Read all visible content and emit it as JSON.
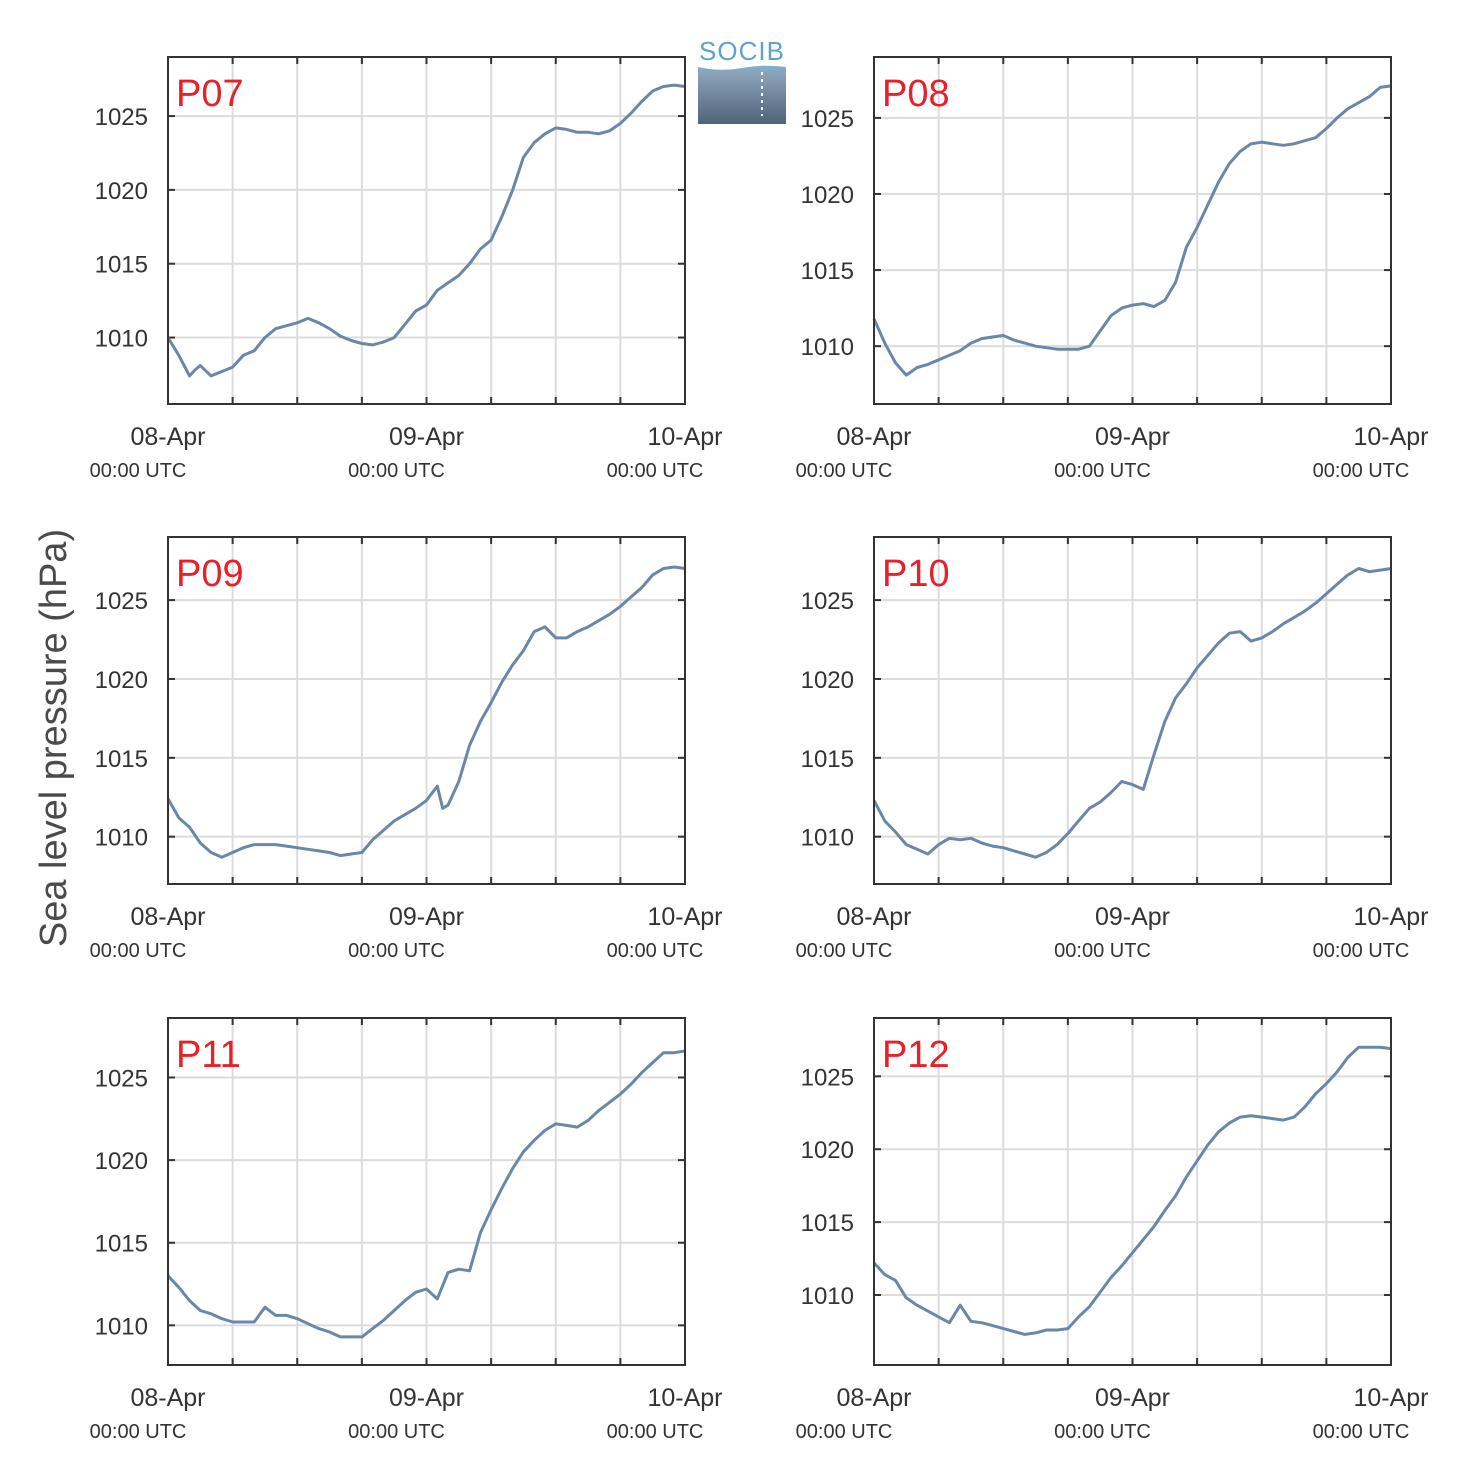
{
  "figure": {
    "ylabel": "Sea level pressure (hPa)",
    "logo_text": "SOCIB",
    "colors": {
      "series": "#6b87a8",
      "panel_label": "#e8202a",
      "grid": "#dcdcdc",
      "axis": "#333333",
      "text": "#333333",
      "logo_top": "#7fb0cf",
      "logo_bottom": "#4f6378"
    }
  },
  "chart_data": [
    {
      "type": "line",
      "panel_label": "P07",
      "x_ticks": [
        {
          "date": "08-Apr",
          "time": "00:00 UTC"
        },
        {
          "date": "09-Apr",
          "time": "00:00 UTC"
        },
        {
          "date": "10-Apr",
          "time": "00:00 UTC"
        }
      ],
      "xlim_hours": [
        0,
        48
      ],
      "ylim": [
        1005.5,
        1029
      ],
      "yticks": [
        1010,
        1015,
        1020,
        1025
      ],
      "grid": true,
      "x_hours": [
        0,
        1,
        2,
        2.5,
        3,
        4,
        5,
        6,
        7,
        8,
        9,
        10,
        11,
        12,
        13,
        14,
        15,
        16,
        17,
        18,
        19,
        20,
        21,
        22,
        23,
        24,
        25,
        26,
        27,
        28,
        29,
        30,
        31,
        32,
        33,
        34,
        35,
        36,
        37,
        38,
        39,
        40,
        41,
        42,
        43,
        44,
        45,
        46,
        47,
        48
      ],
      "values": [
        1010.0,
        1008.8,
        1007.4,
        1007.8,
        1008.1,
        1007.4,
        1007.7,
        1008.0,
        1008.8,
        1009.1,
        1010.0,
        1010.6,
        1010.8,
        1011.0,
        1011.3,
        1011.0,
        1010.6,
        1010.1,
        1009.8,
        1009.6,
        1009.5,
        1009.7,
        1010.0,
        1010.9,
        1011.8,
        1012.2,
        1013.2,
        1013.7,
        1014.2,
        1015.0,
        1016.0,
        1016.6,
        1018.2,
        1020.0,
        1022.2,
        1023.2,
        1023.8,
        1024.2,
        1024.1,
        1023.9,
        1023.9,
        1023.8,
        1024.0,
        1024.5,
        1025.2,
        1026.0,
        1026.7,
        1027.0,
        1027.1,
        1027.0
      ]
    },
    {
      "type": "line",
      "panel_label": "P08",
      "x_ticks": [
        {
          "date": "08-Apr",
          "time": "00:00 UTC"
        },
        {
          "date": "09-Apr",
          "time": "00:00 UTC"
        },
        {
          "date": "10-Apr",
          "time": "00:00 UTC"
        }
      ],
      "xlim_hours": [
        0,
        48
      ],
      "ylim": [
        1006.2,
        1029
      ],
      "yticks": [
        1010,
        1015,
        1020,
        1025
      ],
      "grid": true,
      "x_hours": [
        0,
        1,
        2,
        3,
        4,
        5,
        6,
        7,
        8,
        9,
        10,
        11,
        12,
        13,
        14,
        15,
        16,
        17,
        18,
        19,
        20,
        21,
        22,
        23,
        24,
        25,
        26,
        27,
        28,
        29,
        30,
        31,
        32,
        33,
        34,
        35,
        36,
        37,
        38,
        39,
        40,
        41,
        42,
        43,
        44,
        45,
        46,
        47,
        48
      ],
      "values": [
        1011.8,
        1010.2,
        1008.9,
        1008.1,
        1008.6,
        1008.8,
        1009.1,
        1009.4,
        1009.7,
        1010.2,
        1010.5,
        1010.6,
        1010.7,
        1010.4,
        1010.2,
        1010.0,
        1009.9,
        1009.8,
        1009.8,
        1009.8,
        1010.0,
        1011.0,
        1012.0,
        1012.5,
        1012.7,
        1012.8,
        1012.6,
        1013.0,
        1014.2,
        1016.5,
        1017.8,
        1019.3,
        1020.8,
        1022.0,
        1022.8,
        1023.3,
        1023.4,
        1023.3,
        1023.2,
        1023.3,
        1023.5,
        1023.7,
        1024.3,
        1025.0,
        1025.6,
        1026.0,
        1026.4,
        1027.0,
        1027.1
      ]
    },
    {
      "type": "line",
      "panel_label": "P09",
      "x_ticks": [
        {
          "date": "08-Apr",
          "time": "00:00 UTC"
        },
        {
          "date": "09-Apr",
          "time": "00:00 UTC"
        },
        {
          "date": "10-Apr",
          "time": "00:00 UTC"
        }
      ],
      "xlim_hours": [
        0,
        48
      ],
      "ylim": [
        1007,
        1029
      ],
      "yticks": [
        1010,
        1015,
        1020,
        1025
      ],
      "grid": true,
      "x_hours": [
        0,
        1,
        2,
        3,
        4,
        5,
        6,
        7,
        8,
        9,
        10,
        11,
        12,
        13,
        14,
        15,
        16,
        17,
        18,
        19,
        20,
        21,
        22,
        23,
        24,
        25,
        25.5,
        26,
        27,
        28,
        29,
        30,
        31,
        32,
        33,
        34,
        35,
        36,
        37,
        38,
        39,
        40,
        41,
        42,
        43,
        44,
        45,
        46,
        47,
        48
      ],
      "values": [
        1012.4,
        1011.2,
        1010.6,
        1009.6,
        1009.0,
        1008.7,
        1009.0,
        1009.3,
        1009.5,
        1009.5,
        1009.5,
        1009.4,
        1009.3,
        1009.2,
        1009.1,
        1009.0,
        1008.8,
        1008.9,
        1009.0,
        1009.8,
        1010.4,
        1011.0,
        1011.4,
        1011.8,
        1012.3,
        1013.2,
        1011.8,
        1012.0,
        1013.5,
        1015.8,
        1017.3,
        1018.5,
        1019.8,
        1020.9,
        1021.8,
        1023.0,
        1023.3,
        1022.6,
        1022.6,
        1023.0,
        1023.3,
        1023.7,
        1024.1,
        1024.6,
        1025.2,
        1025.8,
        1026.6,
        1027.0,
        1027.1,
        1027.0
      ]
    },
    {
      "type": "line",
      "panel_label": "P10",
      "x_ticks": [
        {
          "date": "08-Apr",
          "time": "00:00 UTC"
        },
        {
          "date": "09-Apr",
          "time": "00:00 UTC"
        },
        {
          "date": "10-Apr",
          "time": "00:00 UTC"
        }
      ],
      "xlim_hours": [
        0,
        48
      ],
      "ylim": [
        1007,
        1029
      ],
      "yticks": [
        1010,
        1015,
        1020,
        1025
      ],
      "grid": true,
      "x_hours": [
        0,
        1,
        2,
        3,
        4,
        5,
        6,
        7,
        8,
        9,
        10,
        11,
        12,
        13,
        14,
        15,
        16,
        17,
        18,
        19,
        20,
        21,
        22,
        23,
        24,
        25,
        26,
        27,
        28,
        29,
        30,
        31,
        32,
        33,
        34,
        35,
        36,
        37,
        38,
        39,
        40,
        41,
        42,
        43,
        44,
        45,
        46,
        47,
        48
      ],
      "values": [
        1012.3,
        1011.0,
        1010.3,
        1009.5,
        1009.2,
        1008.9,
        1009.5,
        1009.9,
        1009.8,
        1009.9,
        1009.6,
        1009.4,
        1009.3,
        1009.1,
        1008.9,
        1008.7,
        1009.0,
        1009.5,
        1010.2,
        1011.0,
        1011.8,
        1012.2,
        1012.8,
        1013.5,
        1013.3,
        1013.0,
        1015.2,
        1017.3,
        1018.8,
        1019.7,
        1020.7,
        1021.5,
        1022.3,
        1022.9,
        1023.0,
        1022.4,
        1022.6,
        1023.0,
        1023.5,
        1023.9,
        1024.3,
        1024.8,
        1025.4,
        1026.0,
        1026.6,
        1027.0,
        1026.8,
        1026.9,
        1027.0
      ]
    },
    {
      "type": "line",
      "panel_label": "P11",
      "x_ticks": [
        {
          "date": "08-Apr",
          "time": "00:00 UTC"
        },
        {
          "date": "09-Apr",
          "time": "00:00 UTC"
        },
        {
          "date": "10-Apr",
          "time": "00:00 UTC"
        }
      ],
      "xlim_hours": [
        0,
        48
      ],
      "ylim": [
        1007.6,
        1028.6
      ],
      "yticks": [
        1010,
        1015,
        1020,
        1025
      ],
      "grid": true,
      "x_hours": [
        0,
        1,
        2,
        3,
        4,
        5,
        6,
        7,
        8,
        9,
        10,
        11,
        12,
        13,
        14,
        15,
        16,
        17,
        18,
        19,
        20,
        21,
        22,
        23,
        24,
        25,
        26,
        27,
        28,
        29,
        30,
        31,
        32,
        33,
        34,
        35,
        36,
        37,
        38,
        39,
        40,
        41,
        42,
        43,
        44,
        45,
        46,
        47,
        48
      ],
      "values": [
        1013.0,
        1012.3,
        1011.5,
        1010.9,
        1010.7,
        1010.4,
        1010.2,
        1010.2,
        1010.2,
        1011.1,
        1010.6,
        1010.6,
        1010.4,
        1010.1,
        1009.8,
        1009.6,
        1009.3,
        1009.3,
        1009.3,
        1009.8,
        1010.3,
        1010.9,
        1011.5,
        1012.0,
        1012.2,
        1011.6,
        1013.2,
        1013.4,
        1013.3,
        1015.6,
        1017.0,
        1018.3,
        1019.5,
        1020.5,
        1021.2,
        1021.8,
        1022.2,
        1022.1,
        1022.0,
        1022.4,
        1023.0,
        1023.5,
        1024.0,
        1024.6,
        1025.3,
        1025.9,
        1026.5,
        1026.5,
        1026.6
      ]
    },
    {
      "type": "line",
      "panel_label": "P12",
      "x_ticks": [
        {
          "date": "08-Apr",
          "time": "00:00 UTC"
        },
        {
          "date": "09-Apr",
          "time": "00:00 UTC"
        },
        {
          "date": "10-Apr",
          "time": "00:00 UTC"
        }
      ],
      "xlim_hours": [
        0,
        48
      ],
      "ylim": [
        1005.2,
        1029
      ],
      "yticks": [
        1010,
        1015,
        1020,
        1025
      ],
      "grid": true,
      "x_hours": [
        0,
        1,
        2,
        3,
        4,
        5,
        6,
        7,
        8,
        9,
        10,
        11,
        12,
        13,
        14,
        15,
        16,
        17,
        18,
        19,
        20,
        21,
        22,
        23,
        24,
        25,
        26,
        27,
        28,
        29,
        30,
        31,
        32,
        33,
        34,
        35,
        36,
        37,
        38,
        39,
        40,
        41,
        42,
        43,
        44,
        45,
        46,
        47,
        48
      ],
      "values": [
        1012.2,
        1011.4,
        1011.0,
        1009.8,
        1009.3,
        1008.9,
        1008.5,
        1008.1,
        1009.3,
        1008.2,
        1008.1,
        1007.9,
        1007.7,
        1007.5,
        1007.3,
        1007.4,
        1007.6,
        1007.6,
        1007.7,
        1008.5,
        1009.2,
        1010.2,
        1011.2,
        1012.0,
        1012.9,
        1013.8,
        1014.7,
        1015.8,
        1016.8,
        1018.1,
        1019.2,
        1020.3,
        1021.2,
        1021.8,
        1022.2,
        1022.3,
        1022.2,
        1022.1,
        1022.0,
        1022.2,
        1022.9,
        1023.8,
        1024.5,
        1025.3,
        1026.3,
        1027.0,
        1027.0,
        1027.0,
        1026.9
      ]
    }
  ]
}
